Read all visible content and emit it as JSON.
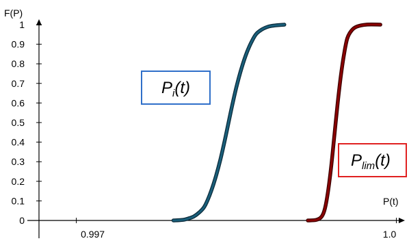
{
  "chart_data": {
    "type": "line",
    "ylabel": "F(P)",
    "xlabel": "P(t)",
    "y_ticks": [
      "0",
      "0.1",
      "0.2",
      "0.3",
      "0.4",
      "0.5",
      "0.6",
      "0.7",
      "0.8",
      "0.9",
      "1"
    ],
    "x_ticks": [
      {
        "label": "0.997",
        "value": 0.997
      },
      {
        "label": "1.0",
        "value": 1.0
      }
    ],
    "xlim": [
      0.99665,
      1.00008
    ],
    "ylim": [
      0,
      1.1
    ],
    "grid": false,
    "series": [
      {
        "name_main": "P",
        "name_sub": "i",
        "name_suffix": "(t)",
        "color": "#1a5f7a",
        "outline": "#0b2a3a",
        "box_color": "#2f6fc9",
        "points": [
          [
            0.99791,
            0.0
          ],
          [
            0.998,
            0.003
          ],
          [
            0.99805,
            0.01
          ],
          [
            0.9981,
            0.02
          ],
          [
            0.99815,
            0.04
          ],
          [
            0.9982,
            0.07
          ],
          [
            0.99825,
            0.13
          ],
          [
            0.9983,
            0.21
          ],
          [
            0.99835,
            0.31
          ],
          [
            0.9984,
            0.43
          ],
          [
            0.99845,
            0.56
          ],
          [
            0.9985,
            0.68
          ],
          [
            0.99855,
            0.78
          ],
          [
            0.9986,
            0.86
          ],
          [
            0.99865,
            0.92
          ],
          [
            0.9987,
            0.96
          ],
          [
            0.9988,
            0.99
          ],
          [
            0.99895,
            1.0
          ]
        ]
      },
      {
        "name_main": "P",
        "name_sub": "lim",
        "name_suffix": "(t)",
        "color": "#8b0000",
        "outline": "#3a0000",
        "box_color": "#e02020",
        "points": [
          [
            0.99917,
            0.0
          ],
          [
            0.99925,
            0.003
          ],
          [
            0.9993,
            0.02
          ],
          [
            0.99933,
            0.06
          ],
          [
            0.99936,
            0.15
          ],
          [
            0.99939,
            0.28
          ],
          [
            0.99942,
            0.44
          ],
          [
            0.99945,
            0.6
          ],
          [
            0.99948,
            0.74
          ],
          [
            0.99951,
            0.85
          ],
          [
            0.99954,
            0.93
          ],
          [
            0.99958,
            0.97
          ],
          [
            0.99963,
            0.99
          ],
          [
            0.99972,
            1.0
          ],
          [
            0.99985,
            1.0
          ]
        ]
      }
    ]
  }
}
